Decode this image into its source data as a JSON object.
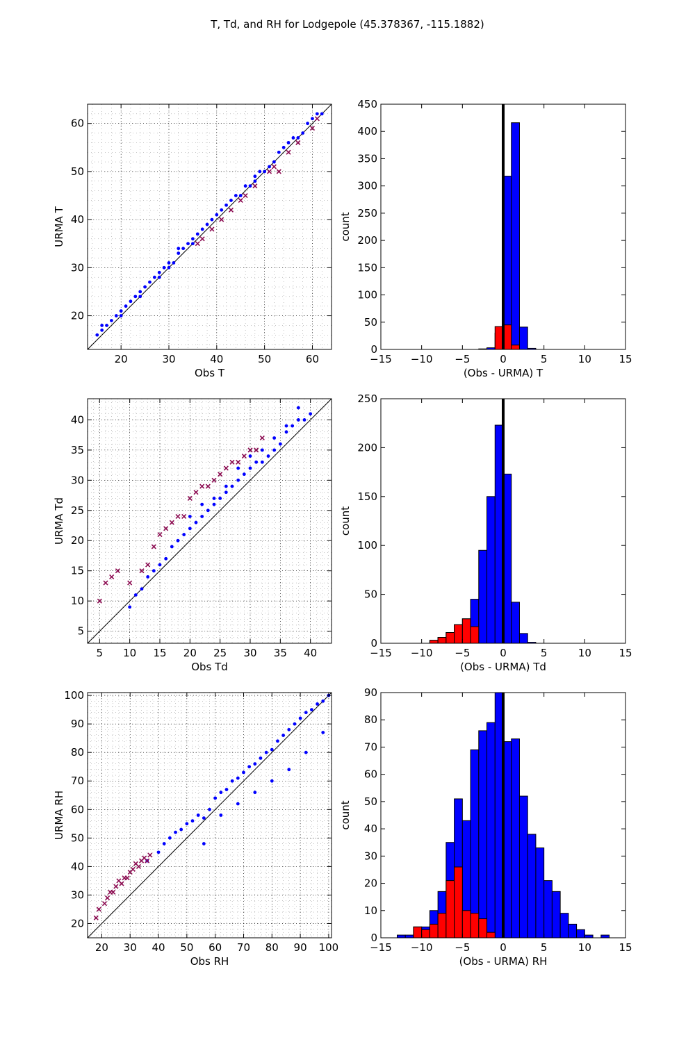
{
  "figure_title": "T, Td, and RH for Lodgepole (45.378367, -115.1882)",
  "colors": {
    "primary": "#0000ff",
    "highlight": "#ff0000",
    "highlight_scatter": "#8b0a50",
    "grid": "#000000"
  },
  "chart_data": [
    {
      "id": "scatter-t",
      "type": "scatter",
      "xlabel": "Obs T",
      "ylabel": "URMA T",
      "xlim": [
        13,
        64
      ],
      "ylim": [
        13,
        64
      ],
      "xticks": [
        20,
        30,
        40,
        50,
        60
      ],
      "yticks": [
        20,
        30,
        40,
        50,
        60
      ],
      "grid": true,
      "one_to_one_line": true,
      "series": [
        {
          "color": "#0000ff",
          "x": [
            15,
            16,
            16,
            17,
            18,
            19,
            20,
            20,
            21,
            22,
            23,
            24,
            24,
            25,
            26,
            27,
            28,
            28,
            29,
            30,
            30,
            31,
            32,
            32,
            33,
            34,
            35,
            35,
            36,
            37,
            38,
            39,
            40,
            41,
            42,
            43,
            44,
            45,
            46,
            47,
            48,
            48,
            49,
            50,
            51,
            52,
            53,
            54,
            55,
            56,
            57,
            58,
            59,
            60,
            61,
            62
          ],
          "y": [
            16,
            17,
            18,
            18,
            19,
            20,
            20,
            21,
            22,
            23,
            24,
            24,
            25,
            26,
            27,
            28,
            29,
            28,
            30,
            30,
            31,
            31,
            33,
            34,
            34,
            35,
            35,
            36,
            37,
            38,
            39,
            40,
            41,
            42,
            43,
            44,
            45,
            45,
            47,
            47,
            49,
            48,
            50,
            50,
            51,
            52,
            54,
            55,
            56,
            57,
            57,
            58,
            60,
            61,
            62,
            62
          ]
        },
        {
          "color": "#8b0a50",
          "x": [
            36,
            37,
            39,
            41,
            43,
            45,
            46,
            48,
            51,
            52,
            53,
            55,
            57,
            60,
            61
          ],
          "y": [
            35,
            36,
            38,
            40,
            42,
            44,
            45,
            47,
            50,
            51,
            50,
            54,
            56,
            59,
            61
          ]
        }
      ]
    },
    {
      "id": "hist-t",
      "type": "bar",
      "xlabel": "(Obs - URMA) T",
      "ylabel": "count",
      "xlim": [
        -15,
        15
      ],
      "ylim": [
        0,
        450
      ],
      "xticks": [
        -15,
        -10,
        -5,
        0,
        5,
        10,
        15
      ],
      "yticks": [
        0,
        50,
        100,
        150,
        200,
        250,
        300,
        350,
        400,
        450
      ],
      "zero_line": true,
      "series": [
        {
          "color": "#0000ff",
          "edges": [
            -3,
            -2,
            -1,
            0,
            1,
            2,
            3,
            4
          ],
          "values": [
            1,
            3,
            30,
            318,
            416,
            41,
            2
          ]
        },
        {
          "color": "#ff0000",
          "edges": [
            -1,
            0,
            1,
            2
          ],
          "values": [
            42,
            45,
            8
          ]
        }
      ]
    },
    {
      "id": "scatter-td",
      "type": "scatter",
      "xlabel": "Obs Td",
      "ylabel": "URMA Td",
      "xlim": [
        3,
        43.5
      ],
      "ylim": [
        3,
        43.5
      ],
      "xticks": [
        5,
        10,
        15,
        20,
        25,
        30,
        35,
        40
      ],
      "yticks": [
        5,
        10,
        15,
        20,
        25,
        30,
        35,
        40
      ],
      "grid": true,
      "one_to_one_line": true,
      "series": [
        {
          "color": "#0000ff",
          "x": [
            10,
            11,
            12,
            13,
            14,
            15,
            16,
            17,
            18,
            19,
            20,
            21,
            22,
            23,
            24,
            25,
            26,
            27,
            28,
            29,
            30,
            31,
            32,
            33,
            34,
            35,
            36,
            37,
            38,
            39,
            40,
            20,
            22,
            24,
            26,
            28,
            30,
            32,
            34,
            36,
            38
          ],
          "y": [
            9,
            11,
            12,
            14,
            15,
            16,
            17,
            19,
            20,
            21,
            22,
            23,
            24,
            25,
            26,
            27,
            28,
            29,
            30,
            31,
            32,
            33,
            33,
            34,
            35,
            36,
            38,
            39,
            40,
            40,
            41,
            24,
            26,
            27,
            29,
            32,
            34,
            35,
            37,
            39,
            42
          ]
        },
        {
          "color": "#8b0a50",
          "x": [
            5,
            6,
            7,
            8,
            10,
            12,
            13,
            14,
            15,
            16,
            17,
            18,
            19,
            20,
            21,
            22,
            23,
            24,
            25,
            26,
            27,
            28,
            29,
            30,
            31,
            32
          ],
          "y": [
            10,
            13,
            14,
            15,
            13,
            15,
            16,
            19,
            21,
            22,
            23,
            24,
            24,
            27,
            28,
            29,
            29,
            30,
            31,
            32,
            33,
            33,
            34,
            35,
            35,
            37
          ]
        }
      ]
    },
    {
      "id": "hist-td",
      "type": "bar",
      "xlabel": "(Obs - URMA) Td",
      "ylabel": "count",
      "xlim": [
        -15,
        15
      ],
      "ylim": [
        0,
        250
      ],
      "xticks": [
        -15,
        -10,
        -5,
        0,
        5,
        10,
        15
      ],
      "yticks": [
        0,
        50,
        100,
        150,
        200,
        250
      ],
      "zero_line": true,
      "series": [
        {
          "color": "#0000ff",
          "edges": [
            -9,
            -8,
            -7,
            -6,
            -5,
            -4,
            -3,
            -2,
            -1,
            0,
            1,
            2,
            3,
            4
          ],
          "values": [
            3,
            6,
            11,
            19,
            25,
            45,
            95,
            150,
            223,
            173,
            42,
            10,
            1
          ]
        },
        {
          "color": "#ff0000",
          "edges": [
            -9,
            -8,
            -7,
            -6,
            -5,
            -4,
            -3
          ],
          "values": [
            3,
            6,
            11,
            19,
            25,
            17
          ]
        }
      ]
    },
    {
      "id": "scatter-rh",
      "type": "scatter",
      "xlabel": "Obs RH",
      "ylabel": "URMA RH",
      "xlim": [
        15,
        101
      ],
      "ylim": [
        15,
        101
      ],
      "xticks": [
        20,
        30,
        40,
        50,
        60,
        70,
        80,
        90,
        100
      ],
      "yticks": [
        20,
        30,
        40,
        50,
        60,
        70,
        80,
        90,
        100
      ],
      "grid": true,
      "one_to_one_line": true,
      "series": [
        {
          "color": "#0000ff",
          "x": [
            36,
            40,
            42,
            44,
            46,
            48,
            50,
            52,
            54,
            56,
            58,
            60,
            62,
            64,
            66,
            68,
            70,
            72,
            74,
            76,
            78,
            80,
            82,
            84,
            86,
            88,
            90,
            92,
            94,
            96,
            98,
            100,
            56,
            62,
            68,
            74,
            80,
            86,
            92,
            98
          ],
          "y": [
            42,
            45,
            48,
            50,
            52,
            53,
            55,
            56,
            58,
            57,
            60,
            64,
            66,
            67,
            70,
            71,
            73,
            75,
            76,
            78,
            80,
            81,
            84,
            86,
            88,
            90,
            92,
            94,
            95,
            97,
            98,
            100,
            48,
            58,
            62,
            66,
            70,
            74,
            80,
            87
          ]
        },
        {
          "color": "#8b0a50",
          "x": [
            18,
            19,
            21,
            22,
            23,
            24,
            25,
            26,
            27,
            28,
            29,
            30,
            31,
            32,
            33,
            34,
            35,
            36,
            37
          ],
          "y": [
            22,
            25,
            27,
            29,
            31,
            31,
            33,
            35,
            34,
            36,
            36,
            38,
            39,
            41,
            40,
            42,
            43,
            42,
            44
          ]
        }
      ]
    },
    {
      "id": "hist-rh",
      "type": "bar",
      "xlabel": "(Obs - URMA) RH",
      "ylabel": "count",
      "xlim": [
        -15,
        15
      ],
      "ylim": [
        0,
        90
      ],
      "xticks": [
        -15,
        -10,
        -5,
        0,
        5,
        10,
        15
      ],
      "yticks": [
        0,
        10,
        20,
        30,
        40,
        50,
        60,
        70,
        80,
        90
      ],
      "zero_line": true,
      "series": [
        {
          "color": "#0000ff",
          "edges": [
            -13,
            -12,
            -11,
            -10,
            -9,
            -8,
            -7,
            -6,
            -5,
            -4,
            -3,
            -2,
            -1,
            0,
            1,
            2,
            3,
            4,
            5,
            6,
            7,
            8,
            9,
            10,
            11,
            12,
            13,
            14
          ],
          "values": [
            1,
            1,
            4,
            4,
            10,
            17,
            35,
            51,
            43,
            69,
            76,
            79,
            90,
            72,
            73,
            52,
            38,
            33,
            21,
            17,
            9,
            5,
            3,
            1,
            0,
            1,
            0
          ]
        },
        {
          "color": "#ff0000",
          "edges": [
            -11,
            -10,
            -9,
            -8,
            -7,
            -6,
            -5,
            -4,
            -3,
            -2,
            -1
          ],
          "values": [
            4,
            3,
            5,
            9,
            21,
            26,
            10,
            9,
            7,
            2
          ]
        }
      ]
    }
  ]
}
